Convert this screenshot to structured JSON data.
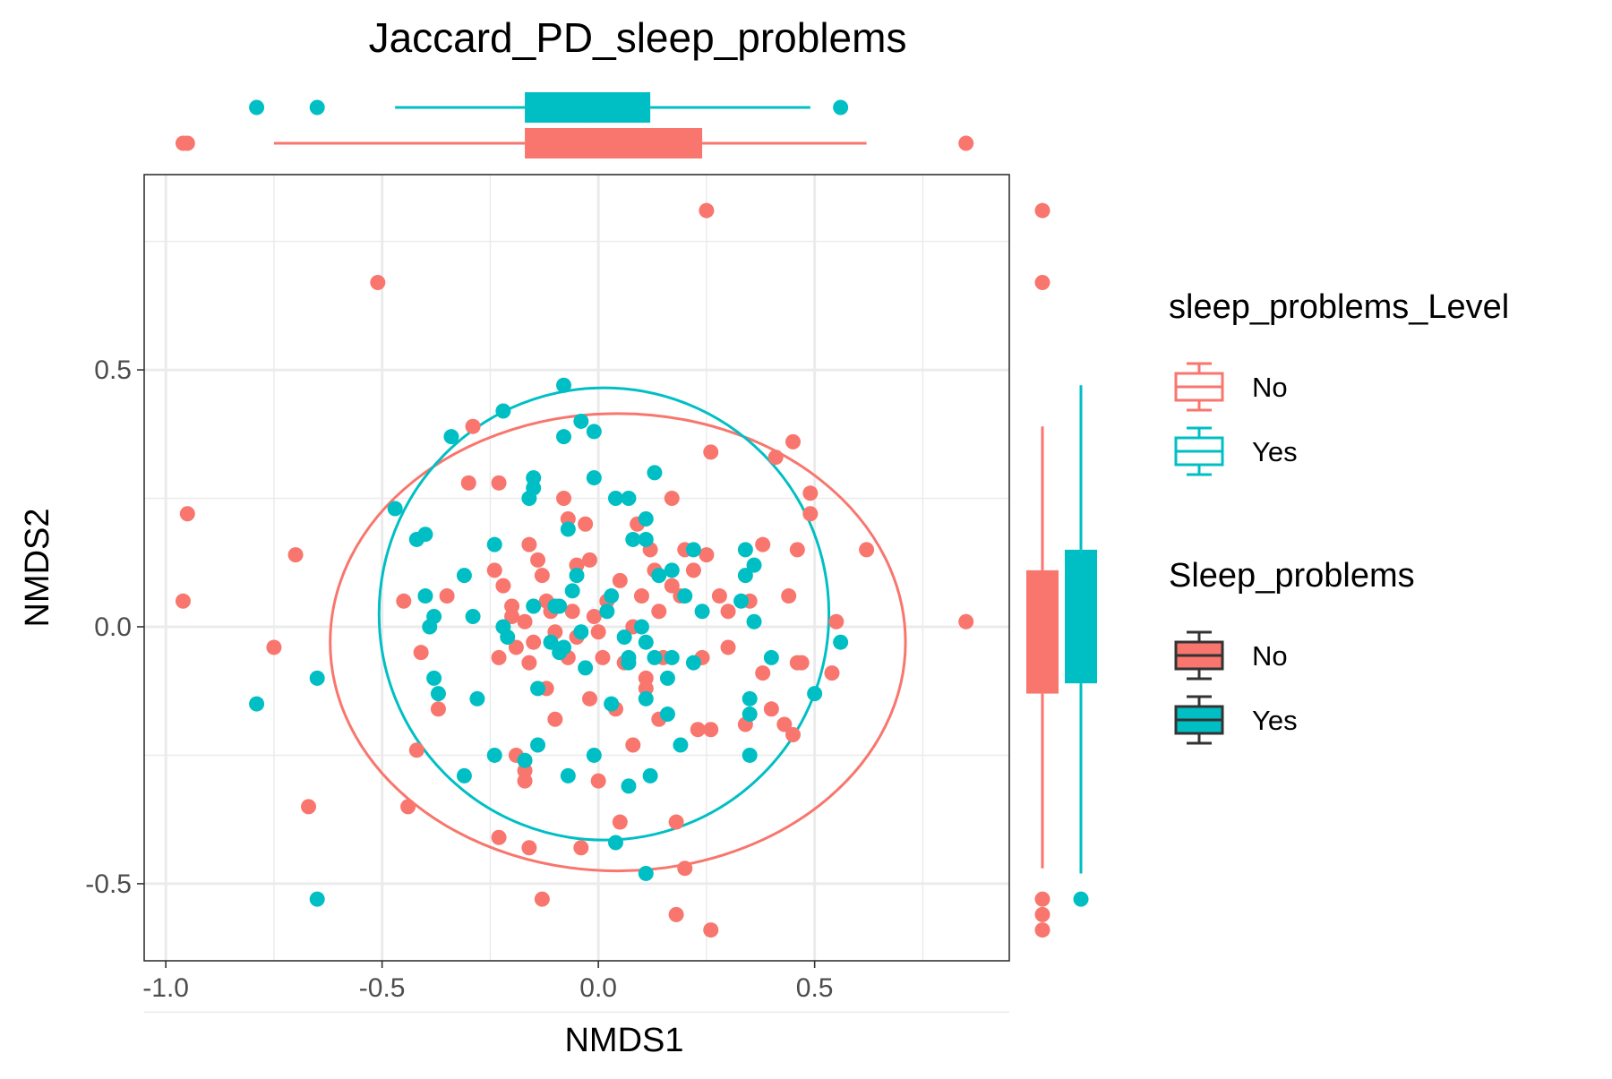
{
  "chart_data": {
    "type": "scatter",
    "title": "Jaccard_PD_sleep_problems",
    "xlabel": "NMDS1",
    "ylabel": "NMDS2",
    "xlim": [
      -1.05,
      0.95
    ],
    "ylim": [
      -0.65,
      0.88
    ],
    "x_ticks": [
      -1.0,
      -0.5,
      0.0,
      0.5
    ],
    "x_tick_labels": [
      "-1.0",
      "-0.5",
      "0.0",
      "0.5"
    ],
    "y_ticks": [
      -0.5,
      0.0,
      0.5
    ],
    "y_tick_labels": [
      "-0.5",
      "0.0",
      "0.5"
    ],
    "grid": true,
    "legend_placement": "right",
    "colors": {
      "No": "#F8766D",
      "Yes": "#00BFC4"
    },
    "legends": [
      {
        "title": "sleep_problems_Level",
        "style": "outline",
        "items": [
          "No",
          "Yes"
        ]
      },
      {
        "title": "Sleep_problems",
        "style": "filled",
        "items": [
          "No",
          "Yes"
        ]
      }
    ],
    "series": [
      {
        "name": "No",
        "color": "#F8766D",
        "points": [
          [
            0.25,
            0.81
          ],
          [
            -0.51,
            0.67
          ],
          [
            -0.95,
            0.22
          ],
          [
            -0.96,
            0.05
          ],
          [
            0.85,
            0.01
          ],
          [
            -0.75,
            -0.04
          ],
          [
            -0.7,
            0.14
          ],
          [
            -0.67,
            -0.35
          ],
          [
            -0.44,
            -0.35
          ],
          [
            -0.42,
            -0.24
          ],
          [
            -0.29,
            0.39
          ],
          [
            -0.3,
            0.28
          ],
          [
            -0.23,
            0.28
          ],
          [
            -0.24,
            0.11
          ],
          [
            -0.22,
            0.08
          ],
          [
            -0.23,
            -0.06
          ],
          [
            -0.2,
            0.04
          ],
          [
            -0.2,
            0.02
          ],
          [
            -0.16,
            0.16
          ],
          [
            -0.14,
            0.13
          ],
          [
            -0.13,
            0.1
          ],
          [
            -0.12,
            0.05
          ],
          [
            -0.11,
            0.03
          ],
          [
            -0.1,
            -0.01
          ],
          [
            -0.08,
            0.25
          ],
          [
            -0.07,
            0.21
          ],
          [
            -0.06,
            0.03
          ],
          [
            -0.05,
            0.12
          ],
          [
            -0.03,
            0.2
          ],
          [
            -0.02,
            0.13
          ],
          [
            -0.01,
            0.02
          ],
          [
            0.0,
            -0.01
          ],
          [
            0.01,
            -0.06
          ],
          [
            0.02,
            0.05
          ],
          [
            0.05,
            0.09
          ],
          [
            0.06,
            -0.07
          ],
          [
            0.08,
            0.0
          ],
          [
            0.09,
            0.2
          ],
          [
            0.1,
            0.06
          ],
          [
            0.11,
            -0.1
          ],
          [
            0.13,
            0.11
          ],
          [
            0.14,
            0.03
          ],
          [
            0.15,
            -0.06
          ],
          [
            0.17,
            0.25
          ],
          [
            0.19,
            0.06
          ],
          [
            0.2,
            0.15
          ],
          [
            0.22,
            0.11
          ],
          [
            0.24,
            -0.06
          ],
          [
            0.25,
            0.14
          ],
          [
            0.26,
            0.34
          ],
          [
            0.28,
            0.06
          ],
          [
            0.3,
            0.03
          ],
          [
            0.35,
            0.05
          ],
          [
            0.38,
            0.16
          ],
          [
            0.41,
            0.33
          ],
          [
            0.44,
            0.06
          ],
          [
            0.45,
            0.36
          ],
          [
            0.46,
            0.15
          ],
          [
            0.47,
            -0.07
          ],
          [
            0.49,
            0.26
          ],
          [
            0.49,
            0.22
          ],
          [
            0.54,
            -0.09
          ],
          [
            0.55,
            0.01
          ],
          [
            0.62,
            0.15
          ],
          [
            -0.45,
            0.05
          ],
          [
            -0.41,
            -0.05
          ],
          [
            -0.37,
            -0.16
          ],
          [
            -0.35,
            0.06
          ],
          [
            -0.19,
            -0.04
          ],
          [
            -0.17,
            0.01
          ],
          [
            -0.16,
            -0.07
          ],
          [
            -0.15,
            -0.03
          ],
          [
            -0.12,
            -0.12
          ],
          [
            -0.1,
            -0.18
          ],
          [
            -0.07,
            -0.06
          ],
          [
            -0.05,
            -0.02
          ],
          [
            -0.02,
            -0.14
          ],
          [
            0.0,
            -0.3
          ],
          [
            0.04,
            -0.16
          ],
          [
            0.05,
            -0.38
          ],
          [
            0.08,
            -0.23
          ],
          [
            0.11,
            -0.12
          ],
          [
            0.14,
            -0.18
          ],
          [
            0.18,
            -0.38
          ],
          [
            0.2,
            -0.47
          ],
          [
            0.23,
            -0.2
          ],
          [
            0.26,
            -0.2
          ],
          [
            0.3,
            -0.04
          ],
          [
            0.34,
            -0.19
          ],
          [
            0.38,
            -0.09
          ],
          [
            0.4,
            -0.16
          ],
          [
            0.43,
            -0.19
          ],
          [
            0.45,
            -0.21
          ],
          [
            0.46,
            -0.07
          ],
          [
            -0.23,
            -0.41
          ],
          [
            -0.16,
            -0.43
          ],
          [
            -0.13,
            -0.53
          ],
          [
            -0.04,
            -0.43
          ],
          [
            0.18,
            -0.56
          ],
          [
            0.26,
            -0.59
          ],
          [
            -0.19,
            -0.25
          ],
          [
            -0.17,
            -0.28
          ],
          [
            -0.17,
            -0.3
          ],
          [
            0.17,
            0.08
          ],
          [
            0.12,
            0.15
          ]
        ]
      },
      {
        "name": "Yes",
        "color": "#00BFC4",
        "points": [
          [
            -0.08,
            0.47
          ],
          [
            -0.22,
            0.42
          ],
          [
            -0.34,
            0.37
          ],
          [
            -0.04,
            0.4
          ],
          [
            -0.01,
            0.38
          ],
          [
            -0.08,
            0.37
          ],
          [
            -0.47,
            0.23
          ],
          [
            -0.42,
            0.17
          ],
          [
            -0.4,
            0.18
          ],
          [
            -0.31,
            0.1
          ],
          [
            -0.24,
            0.16
          ],
          [
            -0.15,
            0.29
          ],
          [
            -0.15,
            0.27
          ],
          [
            -0.16,
            0.25
          ],
          [
            -0.07,
            0.19
          ],
          [
            -0.05,
            0.1
          ],
          [
            -0.01,
            0.29
          ],
          [
            0.04,
            0.25
          ],
          [
            0.07,
            0.25
          ],
          [
            0.11,
            0.21
          ],
          [
            0.13,
            0.3
          ],
          [
            0.08,
            0.17
          ],
          [
            0.11,
            0.17
          ],
          [
            0.14,
            0.1
          ],
          [
            0.17,
            0.11
          ],
          [
            0.22,
            0.15
          ],
          [
            0.34,
            0.15
          ],
          [
            0.36,
            0.12
          ],
          [
            0.34,
            0.1
          ],
          [
            -0.4,
            0.06
          ],
          [
            -0.38,
            0.02
          ],
          [
            -0.39,
            0.0
          ],
          [
            -0.29,
            0.02
          ],
          [
            -0.22,
            0.0
          ],
          [
            -0.15,
            0.04
          ],
          [
            -0.11,
            -0.03
          ],
          [
            -0.09,
            0.04
          ],
          [
            -0.09,
            -0.05
          ],
          [
            -0.06,
            0.07
          ],
          [
            -0.04,
            -0.01
          ],
          [
            0.02,
            0.03
          ],
          [
            0.06,
            -0.02
          ],
          [
            0.07,
            -0.06
          ],
          [
            0.1,
            0.0
          ],
          [
            0.11,
            -0.03
          ],
          [
            0.13,
            -0.06
          ],
          [
            0.16,
            -0.1
          ],
          [
            0.17,
            -0.06
          ],
          [
            0.2,
            0.06
          ],
          [
            0.24,
            0.03
          ],
          [
            0.33,
            0.05
          ],
          [
            0.36,
            0.01
          ],
          [
            0.4,
            -0.06
          ],
          [
            -0.38,
            -0.1
          ],
          [
            -0.37,
            -0.13
          ],
          [
            -0.28,
            -0.14
          ],
          [
            -0.21,
            -0.02
          ],
          [
            -0.14,
            -0.12
          ],
          [
            -0.14,
            -0.23
          ],
          [
            -0.08,
            -0.04
          ],
          [
            -0.03,
            -0.08
          ],
          [
            0.03,
            -0.15
          ],
          [
            0.07,
            -0.07
          ],
          [
            0.11,
            -0.14
          ],
          [
            0.16,
            -0.17
          ],
          [
            0.19,
            -0.23
          ],
          [
            0.22,
            -0.07
          ],
          [
            0.35,
            -0.14
          ],
          [
            0.35,
            -0.17
          ],
          [
            0.5,
            -0.13
          ],
          [
            0.56,
            -0.03
          ],
          [
            -0.24,
            -0.25
          ],
          [
            -0.17,
            -0.26
          ],
          [
            -0.07,
            -0.29
          ],
          [
            -0.01,
            -0.25
          ],
          [
            0.07,
            -0.31
          ],
          [
            0.12,
            -0.29
          ],
          [
            0.35,
            -0.25
          ],
          [
            -0.31,
            -0.29
          ],
          [
            0.04,
            -0.42
          ],
          [
            0.11,
            -0.48
          ],
          [
            -0.65,
            -0.1
          ],
          [
            -0.79,
            -0.15
          ],
          [
            -0.65,
            -0.53
          ],
          [
            -0.1,
            0.04
          ],
          [
            0.03,
            0.06
          ]
        ]
      }
    ],
    "ellipses": [
      {
        "group": "No",
        "center": [
          0.045,
          -0.03
        ],
        "rx": 0.665,
        "ry": 0.445
      },
      {
        "group": "Yes",
        "center": [
          0.013,
          0.025
        ],
        "rx": 0.52,
        "ry": 0.44
      }
    ],
    "marginal_boxplots_x": [
      {
        "group": "Yes",
        "q1": -0.17,
        "median": -0.03,
        "q3": 0.12,
        "whisker_low": -0.47,
        "whisker_high": 0.49,
        "outliers": [
          -0.79,
          -0.65,
          0.56
        ]
      },
      {
        "group": "No",
        "q1": -0.17,
        "median": 0.03,
        "q3": 0.24,
        "whisker_low": -0.75,
        "whisker_high": 0.62,
        "outliers": [
          -0.96,
          -0.95,
          0.85
        ]
      }
    ],
    "marginal_boxplots_y": [
      {
        "group": "No",
        "q1": -0.13,
        "median": -0.02,
        "q3": 0.11,
        "whisker_low": -0.47,
        "whisker_high": 0.39,
        "outliers": [
          0.81,
          0.67,
          -0.53,
          -0.56,
          -0.59
        ]
      },
      {
        "group": "Yes",
        "q1": -0.11,
        "median": 0.02,
        "q3": 0.15,
        "whisker_low": -0.48,
        "whisker_high": 0.47,
        "outliers": [
          -0.53
        ]
      }
    ]
  }
}
